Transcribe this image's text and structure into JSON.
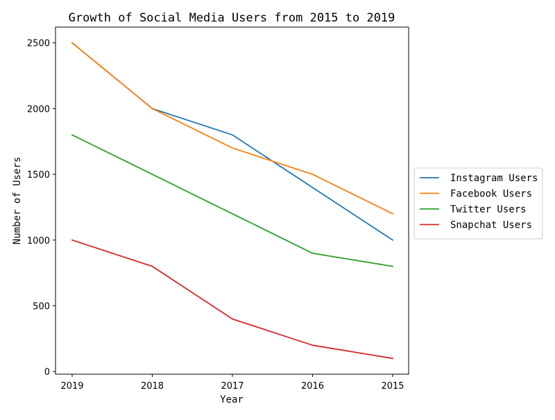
{
  "chart_data": {
    "type": "line",
    "title": "Growth of Social Media Users from 2015 to 2019",
    "xlabel": "Year",
    "ylabel": "Number of Users",
    "categories": [
      "2019",
      "2018",
      "2017",
      "2016",
      "2015"
    ],
    "ylim": [
      -20,
      2620
    ],
    "yticks": [
      0,
      500,
      1000,
      1500,
      2000,
      2500
    ],
    "grid": false,
    "legend_position": "center-right-outside",
    "series": [
      {
        "name": "Instagram Users",
        "color": "#1f77b4",
        "values": [
          2500,
          2000,
          1800,
          1400,
          1000
        ]
      },
      {
        "name": "Facebook Users",
        "color": "#ff7f0e",
        "values": [
          2500,
          2000,
          1700,
          1500,
          1200
        ]
      },
      {
        "name": "Twitter Users",
        "color": "#2ca02c",
        "values": [
          1800,
          1500,
          1200,
          900,
          800
        ]
      },
      {
        "name": "Snapchat Users",
        "color": "#d62728",
        "values": [
          1000,
          800,
          400,
          200,
          100
        ]
      }
    ]
  }
}
